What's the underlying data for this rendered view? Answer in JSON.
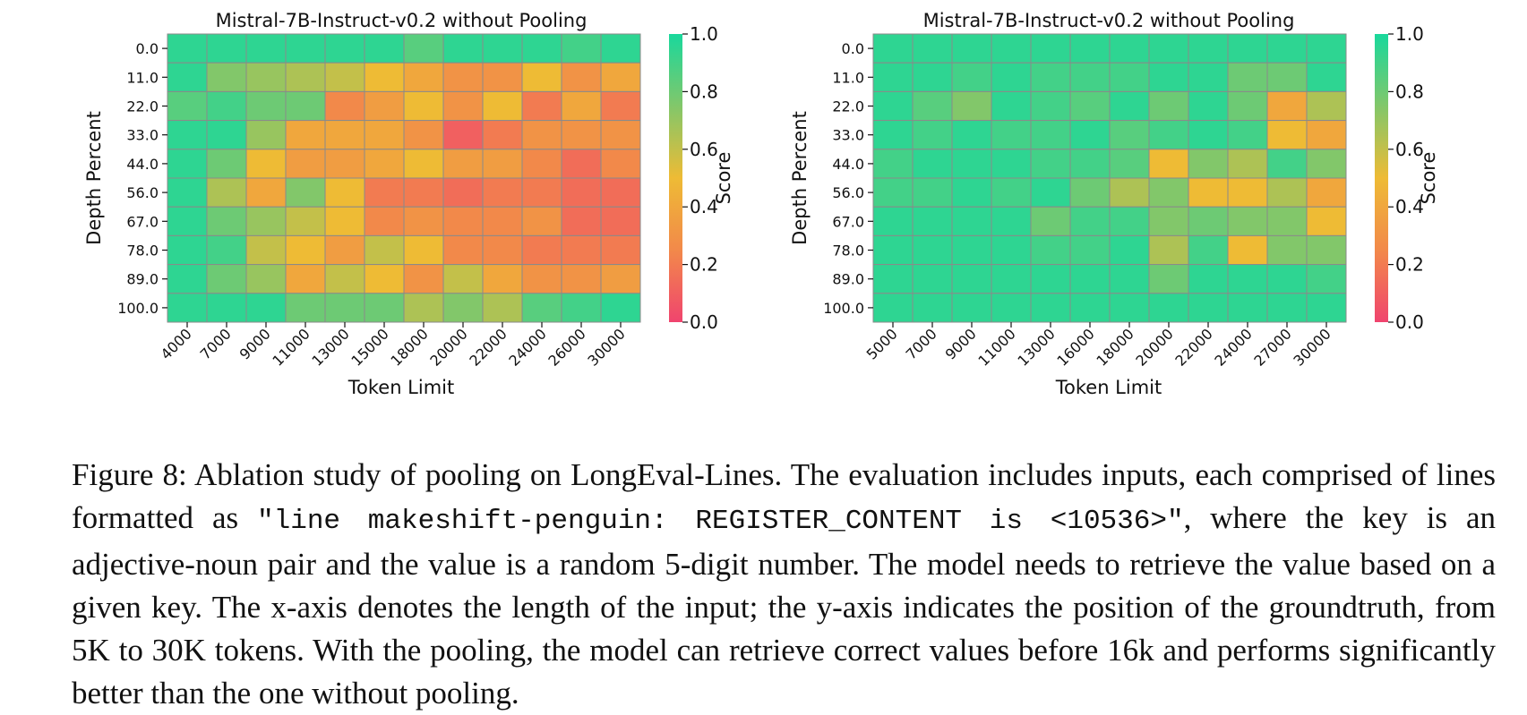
{
  "chart_data": [
    {
      "type": "heatmap",
      "title": "Mistral-7B-Instruct-v0.2 without Pooling",
      "xlabel": "Token Limit",
      "ylabel": "Depth Percent",
      "colorbar_label": "Score",
      "colorbar_ticks": [
        "1.0",
        "0.8",
        "0.6",
        "0.4",
        "0.2",
        "0.0"
      ],
      "vlim": [
        0,
        1
      ],
      "x": [
        "4000",
        "7000",
        "9000",
        "11000",
        "13000",
        "15000",
        "18000",
        "20000",
        "22000",
        "24000",
        "26000",
        "30000"
      ],
      "y": [
        "0.0",
        "11.0",
        "22.0",
        "33.0",
        "44.0",
        "56.0",
        "67.0",
        "78.0",
        "89.0",
        "100.0"
      ],
      "values": [
        [
          0.95,
          0.95,
          0.95,
          0.95,
          0.95,
          0.95,
          0.85,
          0.95,
          0.95,
          0.95,
          0.9,
          0.95
        ],
        [
          0.95,
          0.75,
          0.7,
          0.65,
          0.6,
          0.5,
          0.4,
          0.3,
          0.3,
          0.5,
          0.3,
          0.4
        ],
        [
          0.85,
          0.9,
          0.8,
          0.8,
          0.25,
          0.35,
          0.5,
          0.3,
          0.5,
          0.2,
          0.4,
          0.2
        ],
        [
          0.95,
          0.95,
          0.7,
          0.4,
          0.4,
          0.4,
          0.3,
          0.1,
          0.2,
          0.3,
          0.3,
          0.3
        ],
        [
          0.95,
          0.8,
          0.5,
          0.35,
          0.35,
          0.4,
          0.5,
          0.35,
          0.35,
          0.25,
          0.15,
          0.25
        ],
        [
          0.95,
          0.65,
          0.4,
          0.75,
          0.5,
          0.2,
          0.2,
          0.15,
          0.2,
          0.2,
          0.15,
          0.15
        ],
        [
          0.95,
          0.8,
          0.7,
          0.6,
          0.5,
          0.25,
          0.3,
          0.25,
          0.25,
          0.3,
          0.15,
          0.15
        ],
        [
          0.95,
          0.9,
          0.6,
          0.5,
          0.35,
          0.6,
          0.5,
          0.25,
          0.25,
          0.2,
          0.2,
          0.2
        ],
        [
          0.95,
          0.8,
          0.7,
          0.4,
          0.6,
          0.5,
          0.3,
          0.6,
          0.4,
          0.3,
          0.3,
          0.35
        ],
        [
          0.95,
          0.95,
          0.95,
          0.8,
          0.8,
          0.8,
          0.65,
          0.75,
          0.65,
          0.85,
          0.9,
          0.95
        ]
      ]
    },
    {
      "type": "heatmap",
      "title": "Mistral-7B-Instruct-v0.2 without Pooling",
      "xlabel": "Token Limit",
      "ylabel": "Depth Percent",
      "colorbar_label": "Score",
      "colorbar_ticks": [
        "1.0",
        "0.8",
        "0.6",
        "0.4",
        "0.2",
        "0.0"
      ],
      "vlim": [
        0,
        1
      ],
      "x": [
        "5000",
        "7000",
        "9000",
        "11000",
        "13000",
        "16000",
        "18000",
        "20000",
        "22000",
        "24000",
        "27000",
        "30000"
      ],
      "y": [
        "0.0",
        "11.0",
        "22.0",
        "33.0",
        "44.0",
        "56.0",
        "67.0",
        "78.0",
        "89.0",
        "100.0"
      ],
      "values": [
        [
          0.95,
          0.95,
          0.95,
          0.95,
          0.95,
          0.95,
          0.95,
          0.95,
          0.95,
          0.95,
          0.95,
          0.95
        ],
        [
          0.95,
          0.95,
          0.9,
          0.95,
          0.9,
          0.9,
          0.9,
          0.95,
          0.95,
          0.8,
          0.8,
          0.95
        ],
        [
          0.95,
          0.85,
          0.75,
          0.95,
          0.9,
          0.85,
          0.95,
          0.8,
          0.95,
          0.8,
          0.4,
          0.65
        ],
        [
          0.95,
          0.9,
          0.95,
          0.9,
          0.9,
          0.95,
          0.85,
          0.9,
          0.95,
          0.9,
          0.5,
          0.4
        ],
        [
          0.9,
          0.95,
          0.95,
          0.95,
          0.9,
          0.9,
          0.85,
          0.5,
          0.75,
          0.65,
          0.9,
          0.75
        ],
        [
          0.9,
          0.9,
          0.95,
          0.9,
          0.95,
          0.8,
          0.65,
          0.75,
          0.5,
          0.5,
          0.65,
          0.4
        ],
        [
          0.95,
          0.95,
          0.95,
          0.95,
          0.8,
          0.9,
          0.9,
          0.75,
          0.8,
          0.75,
          0.75,
          0.5
        ],
        [
          0.95,
          0.95,
          0.95,
          0.95,
          0.9,
          0.9,
          0.95,
          0.65,
          0.9,
          0.5,
          0.75,
          0.75
        ],
        [
          0.95,
          0.95,
          0.95,
          0.95,
          0.95,
          0.95,
          0.95,
          0.8,
          0.95,
          0.95,
          0.95,
          0.9
        ],
        [
          0.95,
          0.95,
          0.95,
          0.95,
          0.95,
          0.95,
          0.95,
          0.95,
          0.95,
          0.95,
          0.95,
          0.95
        ]
      ]
    }
  ],
  "colorscale": [
    "#f0446e",
    "#f2894a",
    "#eebb35",
    "#82c76a",
    "#19d89c"
  ],
  "caption": {
    "label": "Figure 8:",
    "part1": "Ablation study of pooling on LongEval-Lines. The evaluation includes inputs, each com­prised of lines formatted as ",
    "code": "\"line makeshift-penguin:  REGISTER_CONTENT is <10536>\"",
    "part2": ", where the key is an adjective-noun pair and the value is a random 5-digit number. The model needs to retrieve the value based on a given key.  The x-axis denotes the length of the input; the y-axis indicates the position of the groundtruth, from 5K to 30K tokens. With the pooling, the model can retrieve correct values before 16k and performs significantly better than the one without pooling."
  }
}
